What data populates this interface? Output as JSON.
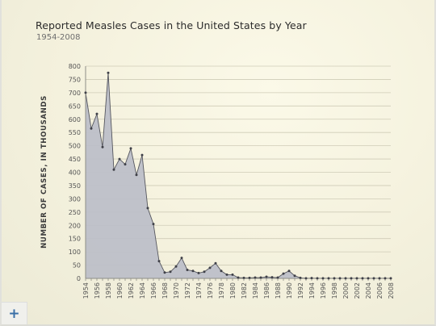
{
  "chart_data": {
    "type": "area",
    "title": "Reported Measles Cases in the United States by Year",
    "subtitle": "1954-2008",
    "ylabel": "NUMBER OF CASES, IN THOUSANDS",
    "xlabel": "",
    "ylim": [
      0,
      800
    ],
    "y_ticks": [
      0,
      50,
      100,
      150,
      200,
      250,
      300,
      350,
      400,
      450,
      500,
      550,
      600,
      650,
      700,
      750,
      800
    ],
    "x_ticks": [
      1954,
      1956,
      1958,
      1960,
      1962,
      1964,
      1966,
      1968,
      1970,
      1972,
      1974,
      1976,
      1978,
      1980,
      1982,
      1984,
      1986,
      1988,
      1990,
      1992,
      1994,
      1996,
      1998,
      2000,
      2002,
      2004,
      2006,
      2008
    ],
    "grid": true,
    "area_color": "#bdbfc8",
    "line_color": "#55565e",
    "x": [
      1954,
      1955,
      1956,
      1957,
      1958,
      1959,
      1960,
      1961,
      1962,
      1963,
      1964,
      1965,
      1966,
      1967,
      1968,
      1969,
      1970,
      1971,
      1972,
      1973,
      1974,
      1975,
      1976,
      1977,
      1978,
      1979,
      1980,
      1981,
      1982,
      1983,
      1984,
      1985,
      1986,
      1987,
      1988,
      1989,
      1990,
      1991,
      1992,
      1993,
      1994,
      1995,
      1996,
      1997,
      1998,
      1999,
      2000,
      2001,
      2002,
      2003,
      2004,
      2005,
      2006,
      2007,
      2008
    ],
    "values": [
      700,
      565,
      620,
      495,
      775,
      410,
      450,
      430,
      490,
      390,
      465,
      265,
      205,
      65,
      22,
      25,
      45,
      77,
      32,
      28,
      20,
      25,
      40,
      57,
      28,
      14,
      14,
      3,
      2,
      2,
      3,
      3,
      6,
      4,
      3,
      18,
      28,
      10,
      2,
      0.5,
      1,
      0.5,
      0.5,
      0.5,
      0.5,
      0.5,
      0.5,
      0.5,
      0.5,
      0.5,
      0.5,
      0.5,
      0.5,
      0.5,
      0.5
    ]
  },
  "ui": {
    "add_button_label": "+"
  }
}
